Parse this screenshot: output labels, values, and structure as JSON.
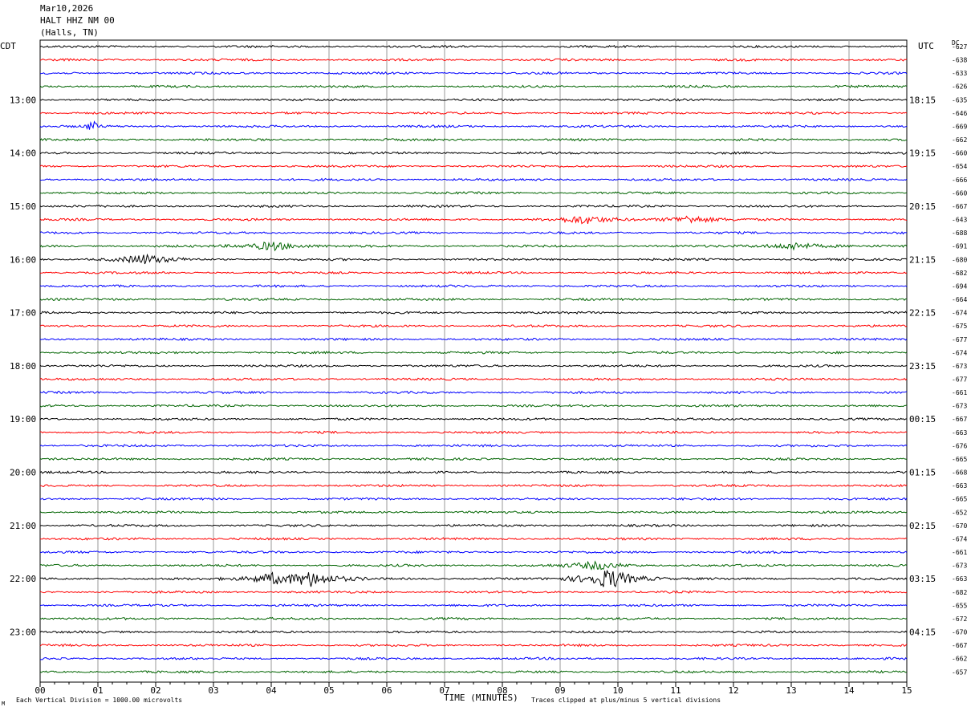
{
  "header": {
    "date": "Mar10,2026",
    "station": "HALT HHZ NM 00",
    "location": "(Halls, TN)"
  },
  "labels": {
    "left_zone": "CDT",
    "right_zone": "UTC",
    "dc": "DC",
    "xlabel": "TIME (MINUTES)",
    "scale_note": "Each Vertical Division = 1000.00 microvolts",
    "clip_note": "Traces clipped at plus/minus 5 vertical divisions",
    "corner_mark": "Μ"
  },
  "chart_data": {
    "type": "line",
    "title": "HALT HHZ NM 00",
    "xlabel": "TIME (MINUTES)",
    "xlim": [
      0,
      15
    ],
    "x_ticks": [
      "00",
      "01",
      "02",
      "03",
      "04",
      "05",
      "06",
      "07",
      "08",
      "09",
      "10",
      "11",
      "12",
      "13",
      "14",
      "15"
    ],
    "grid": "vertical lines every minute",
    "rows_per_hour": 4,
    "minutes_per_row": 15,
    "trace_colors": [
      "#000000",
      "#ff0000",
      "#0000ff",
      "#006400"
    ],
    "left_hour_labels": [
      "13:00",
      "14:00",
      "15:00",
      "16:00",
      "17:00",
      "18:00",
      "19:00",
      "20:00",
      "21:00",
      "22:00",
      "23:00"
    ],
    "right_hour_labels": [
      "18:15",
      "19:15",
      "20:15",
      "21:15",
      "22:15",
      "23:15",
      "00:15",
      "01:15",
      "02:15",
      "03:15",
      "04:15"
    ],
    "dc_offsets": [
      -627,
      -638,
      -633,
      -626,
      -635,
      -646,
      -669,
      -662,
      -660,
      -654,
      -666,
      -660,
      -667,
      -643,
      -688,
      -691,
      -680,
      -682,
      -694,
      -664,
      -674,
      -675,
      -677,
      -674,
      -673,
      -677,
      -661,
      -673,
      -667,
      -663,
      -676,
      -665,
      -668,
      -663,
      -665,
      -652,
      -670,
      -674,
      -661,
      -673,
      -663,
      -682,
      -655,
      -672,
      -670,
      -667,
      -662,
      -657
    ],
    "events": [
      {
        "row": 6,
        "minute": 0.9,
        "amplitude": "spike"
      },
      {
        "row": 13,
        "minute": 9.4,
        "amplitude": "small"
      },
      {
        "row": 13,
        "minute": 11.25,
        "amplitude": "small"
      },
      {
        "row": 15,
        "minute": 4.0,
        "amplitude": "moderate"
      },
      {
        "row": 15,
        "minute": 13.05,
        "amplitude": "small"
      },
      {
        "row": 16,
        "minute": 1.8,
        "amplitude": "moderate"
      },
      {
        "row": 39,
        "minute": 9.65,
        "amplitude": "small"
      },
      {
        "row": 40,
        "minute": 4.0,
        "amplitude": "moderate"
      },
      {
        "row": 40,
        "minute": 4.7,
        "amplitude": "large"
      },
      {
        "row": 40,
        "minute": 9.85,
        "amplitude": "very large"
      }
    ]
  }
}
